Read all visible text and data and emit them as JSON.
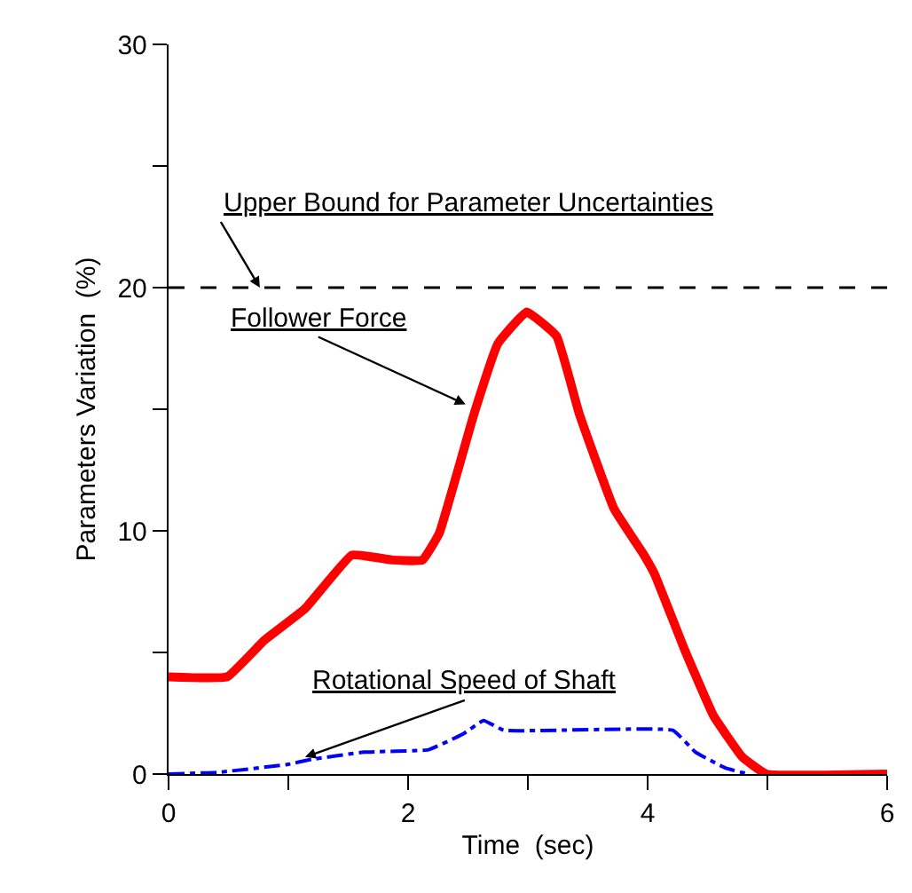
{
  "chart_data": {
    "type": "line",
    "xlabel": "Time  (sec)",
    "ylabel": "Parameters Variation  (%)",
    "xlim": [
      0,
      6
    ],
    "ylim": [
      0,
      30
    ],
    "xticks": [
      0,
      {
        "value": 1,
        "label": null
      },
      2,
      {
        "value": 3,
        "label": null
      },
      4,
      {
        "value": 5,
        "label": null
      },
      6
    ],
    "yticks": [
      0,
      {
        "value": 5,
        "label": null
      },
      10,
      {
        "value": 15,
        "label": null
      },
      20,
      {
        "value": 25,
        "label": null
      },
      30
    ],
    "legend": false,
    "marker": "none",
    "series": [
      {
        "color": "#ff0000",
        "line_style": "solid",
        "x": [
          0,
          0.49,
          0.8,
          1.14,
          1.53,
          1.87,
          2.12,
          2.26,
          2.55,
          2.75,
          2.99,
          3.24,
          3.43,
          3.72,
          3.97,
          4.06,
          4.31,
          4.55,
          4.79,
          4.99,
          6
        ],
        "values": [
          4.0,
          4.0,
          5.5,
          6.8,
          9.0,
          8.8,
          8.8,
          9.9,
          14.8,
          17.7,
          19.0,
          18.0,
          14.8,
          10.9,
          9.0,
          8.2,
          5.1,
          2.4,
          0.7,
          0,
          0
        ]
      },
      {
        "color": "#0000ff",
        "line_style": "dashdot",
        "x": [
          0,
          0.41,
          1.0,
          1.19,
          1.63,
          2.17,
          2.46,
          2.63,
          2.8,
          4.21,
          4.4,
          4.65,
          4.84
        ],
        "values": [
          0,
          0.07,
          0.4,
          0.6,
          0.9,
          1.0,
          1.65,
          2.2,
          1.8,
          1.8,
          0.9,
          0.25,
          0
        ]
      }
    ],
    "ref_lines": [
      {
        "axis": "y",
        "value": 20,
        "label": "Upper Bound for Parameter Uncertainties",
        "color": "#000000",
        "line_style": "dashed"
      }
    ],
    "annotations": [
      {
        "text": "Follower Force",
        "x": 2.48,
        "y": 15.2
      },
      {
        "text": "Rotational Speed of Shaft",
        "x": 1.14,
        "y": 0.7
      }
    ]
  }
}
